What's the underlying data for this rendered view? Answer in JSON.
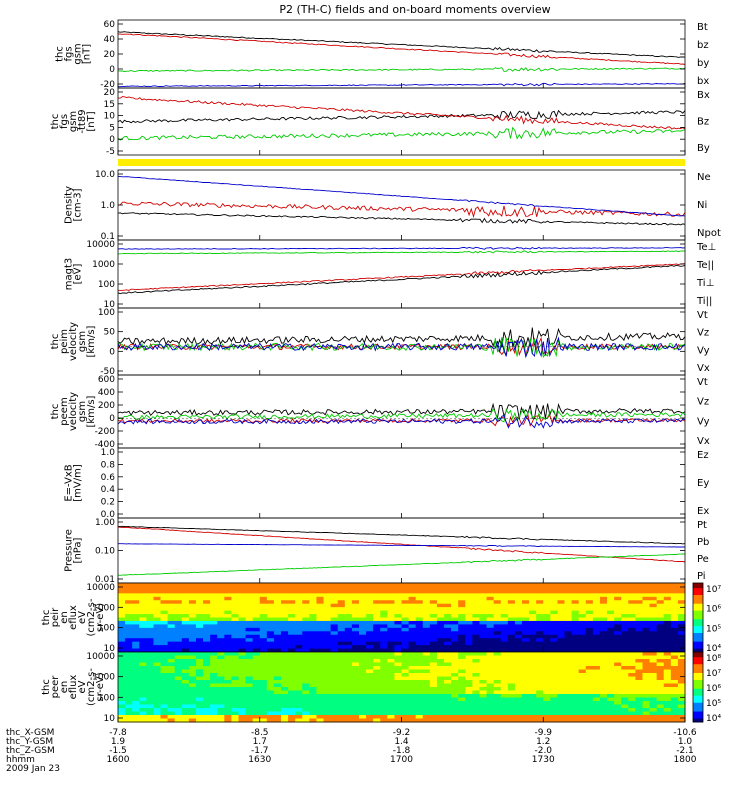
{
  "title": "P2 (TH-C) fields and on-board moments overview",
  "chart_data": [
    {
      "type": "line",
      "ylabel": [
        "thc",
        "fgs",
        "gsm",
        "[nT]"
      ],
      "yticks": [
        "60",
        "40",
        "20",
        "0",
        "-20"
      ],
      "ylim": [
        -20,
        60
      ],
      "series": [
        {
          "name": "Bt",
          "color": "#000000",
          "start": 46,
          "end": 16,
          "noise": 0.6
        },
        {
          "name": "bz",
          "color": "#d00000",
          "start": 44,
          "end": 8,
          "noise": 0.6
        },
        {
          "name": "by",
          "color": "#00cc00",
          "start": 0,
          "end": 3,
          "noise": 0.8
        },
        {
          "name": "bx",
          "color": "#0000cc",
          "start": -18,
          "end": -15,
          "noise": 0.5
        }
      ]
    },
    {
      "type": "line",
      "ylabel": [
        "thc",
        "fgs",
        "gsm",
        "-tt89",
        "[nT]"
      ],
      "yticks": [
        "20",
        "15",
        "10",
        "5",
        "0",
        "-5"
      ],
      "ylim": [
        -8,
        20
      ],
      "series": [
        {
          "name": "Bx",
          "color": "#000000",
          "start": 6,
          "end": 10,
          "noise": 0.6
        },
        {
          "name": "Bz",
          "color": "#d00000",
          "start": 16,
          "end": 3,
          "noise": 0.5
        },
        {
          "name": "By",
          "color": "#00cc00",
          "start": -1,
          "end": 2,
          "noise": 0.8
        }
      ]
    },
    {
      "type": "line",
      "ylabel": [
        "Density",
        "[cm-3]"
      ],
      "yticks": [
        "10.0",
        "1.0",
        "0.1"
      ],
      "scale": "log",
      "ylim": [
        0.1,
        30
      ],
      "series": [
        {
          "name": "Ne",
          "color": "#d00000",
          "start": 2,
          "end": 0.8,
          "noise": 0.15
        },
        {
          "name": "Ni",
          "color": "#000000",
          "start": 0.9,
          "end": 0.35,
          "noise": 0.05
        },
        {
          "name": "Npot",
          "color": "#0000cc",
          "start": 18,
          "end": 0.7,
          "noise": 0.02
        }
      ]
    },
    {
      "type": "line",
      "ylabel": [
        "magt3",
        "[eV]"
      ],
      "yticks": [
        "10000",
        "1000",
        "100",
        "10"
      ],
      "scale": "log",
      "ylim": [
        10,
        10000
      ],
      "series": [
        {
          "name": "Te⊥",
          "color": "#d00000",
          "start": 60,
          "end": 900,
          "noise": 0.05
        },
        {
          "name": "Te||",
          "color": "#000000",
          "start": 45,
          "end": 750,
          "noise": 0.06
        },
        {
          "name": "Ti⊥",
          "color": "#0000cc",
          "start": 4000,
          "end": 4500,
          "noise": 0.03
        },
        {
          "name": "Ti||",
          "color": "#00cc00",
          "start": 2500,
          "end": 3200,
          "noise": 0.03
        }
      ]
    },
    {
      "type": "line",
      "ylabel": [
        "thc",
        "peim",
        "velocity",
        "gsm",
        "[km/s]"
      ],
      "yticks": [
        "100",
        "50",
        "0",
        "-50"
      ],
      "ylim": [
        -80,
        110
      ],
      "series": [
        {
          "name": "Vt",
          "color": "#000000",
          "start": 15,
          "end": 30,
          "noise": 10
        },
        {
          "name": "Vz",
          "color": "#d00000",
          "start": 0,
          "end": 0,
          "noise": 8
        },
        {
          "name": "Vy",
          "color": "#00cc00",
          "start": 0,
          "end": 0,
          "noise": 10
        },
        {
          "name": "Vx",
          "color": "#0000cc",
          "start": 0,
          "end": 0,
          "noise": 10
        }
      ]
    },
    {
      "type": "line",
      "ylabel": [
        "thc",
        "peem",
        "velocity",
        "gsm",
        "[km/s]"
      ],
      "yticks": [
        "600",
        "400",
        "200",
        "0",
        "-200",
        "-400"
      ],
      "ylim": [
        -400,
        600
      ],
      "series": [
        {
          "name": "Vt",
          "color": "#000000",
          "start": 80,
          "end": 110,
          "noise": 35
        },
        {
          "name": "Vz",
          "color": "#d00000",
          "start": -30,
          "end": -20,
          "noise": 25
        },
        {
          "name": "Vy",
          "color": "#00cc00",
          "start": 20,
          "end": 60,
          "noise": 30
        },
        {
          "name": "Vx",
          "color": "#0000cc",
          "start": -40,
          "end": -30,
          "noise": 30
        }
      ]
    },
    {
      "type": "line",
      "ylabel": [
        "E=-VxB",
        "[mV/m]"
      ],
      "yticks": [
        "1.0",
        "0.8",
        "0.6",
        "0.4",
        "0.2",
        "0.0"
      ],
      "ylim": [
        0,
        1
      ],
      "series": [
        {
          "name": "Ez",
          "color": "#d00000",
          "empty": true
        },
        {
          "name": "Ey",
          "color": "#00cc00",
          "empty": true
        },
        {
          "name": "Ex",
          "color": "#0000cc",
          "empty": true
        }
      ]
    },
    {
      "type": "line",
      "ylabel": [
        "Pressure",
        "[nPa]"
      ],
      "yticks": [
        "1.00",
        "0.10",
        "0.01"
      ],
      "scale": "log",
      "ylim": [
        0.006,
        2
      ],
      "series": [
        {
          "name": "Pt",
          "color": "#000000",
          "start": 0.95,
          "end": 0.2,
          "noise": 0.02
        },
        {
          "name": "Pb",
          "color": "#d00000",
          "start": 0.9,
          "end": 0.04,
          "noise": 0.02
        },
        {
          "name": "Pe",
          "color": "#00cc00",
          "start": 0.012,
          "end": 0.08,
          "noise": 0.02
        },
        {
          "name": "Pi",
          "color": "#0000cc",
          "start": 0.2,
          "end": 0.15,
          "noise": 0.01
        }
      ]
    },
    {
      "type": "heatmap",
      "ylabel": [
        "thc",
        "peir",
        "en",
        "eflux",
        "eV",
        "(cm2-s-",
        "sr-eV)"
      ],
      "yticks": [
        "10000",
        "1000",
        "100",
        "10"
      ],
      "colorbar_ticks": [
        "10⁷",
        "10⁶",
        "10⁵",
        "10⁴"
      ]
    },
    {
      "type": "heatmap",
      "ylabel": [
        "thc",
        "peer",
        "en",
        "eflux",
        "eV",
        "(cm2-s-",
        "sr-eV)"
      ],
      "yticks": [
        "10000",
        "1000",
        "100",
        "10"
      ],
      "colorbar_ticks": [
        "10⁸",
        "10⁷",
        "10⁶",
        "10⁵",
        "10⁴"
      ]
    }
  ],
  "xaxis": {
    "rows": [
      {
        "label": "thc_X-GSM",
        "values": [
          "-7.8",
          "-8.5",
          "-9.2",
          "-9.9",
          "-10.6"
        ]
      },
      {
        "label": "thc_Y-GSM",
        "values": [
          "1.9",
          "1.7",
          "1.4",
          "1.2",
          "1.0"
        ]
      },
      {
        "label": "thc_Z-GSM",
        "values": [
          "-1.5",
          "-1.7",
          "-1.8",
          "-2.0",
          "-2.1"
        ]
      },
      {
        "label": "hhmm",
        "values": [
          "1600",
          "1630",
          "1700",
          "1730",
          "1800"
        ]
      }
    ],
    "date": "2009 Jan 23"
  }
}
